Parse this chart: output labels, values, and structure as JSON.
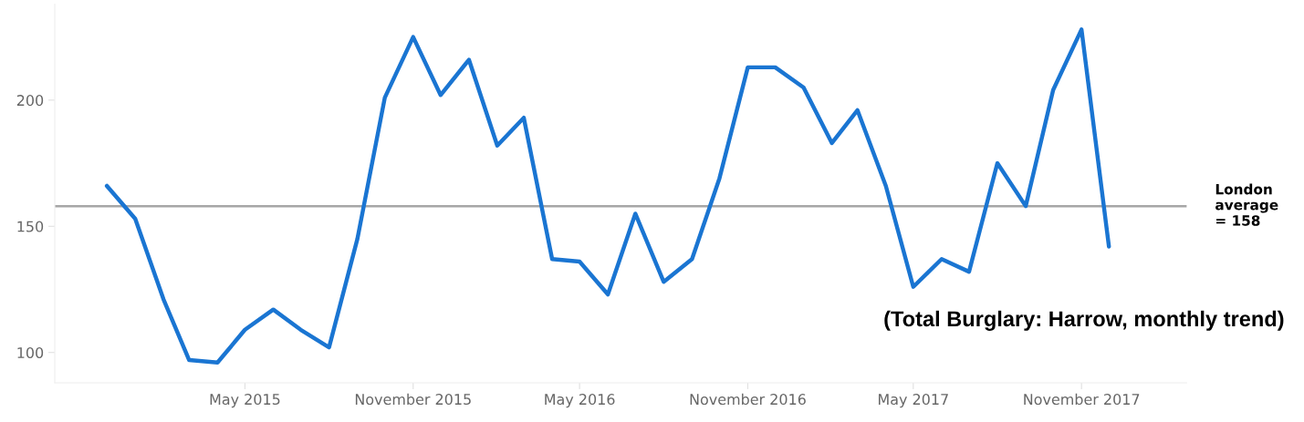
{
  "chart_data": {
    "type": "line",
    "x": [
      "2014-12",
      "2015-01",
      "2015-02",
      "2015-03",
      "2015-04",
      "2015-05",
      "2015-06",
      "2015-07",
      "2015-08",
      "2015-09",
      "2015-10",
      "2015-11",
      "2015-12",
      "2016-01",
      "2016-02",
      "2016-03",
      "2016-04",
      "2016-05",
      "2016-06",
      "2016-07",
      "2016-08",
      "2016-09",
      "2016-10",
      "2016-11",
      "2016-12",
      "2017-01",
      "2017-02",
      "2017-03",
      "2017-04",
      "2017-05",
      "2017-06",
      "2017-07",
      "2017-08",
      "2017-09",
      "2017-10",
      "2017-11",
      "2017-12"
    ],
    "series": [
      {
        "color": "#1a75d2",
        "values": [
          166,
          153,
          121,
          97,
          96,
          109,
          117,
          109,
          102,
          145,
          201,
          225,
          202,
          216,
          182,
          193,
          137,
          136,
          123,
          155,
          128,
          137,
          169,
          213,
          213,
          205,
          183,
          196,
          166,
          126,
          137,
          132,
          175,
          158,
          204,
          228,
          142
        ]
      }
    ],
    "xlim": [
      "2014-10-05",
      "2018-02-24"
    ],
    "xticks": [
      {
        "value": "2015-05",
        "label": "May 2015"
      },
      {
        "value": "2015-11",
        "label": "November 2015"
      },
      {
        "value": "2016-05",
        "label": "May 2016"
      },
      {
        "value": "2016-11",
        "label": "November 2016"
      },
      {
        "value": "2017-05",
        "label": "May 2017"
      },
      {
        "value": "2017-11",
        "label": "November 2017"
      }
    ],
    "ylim": [
      88,
      238
    ],
    "yticks": [
      100,
      150,
      200
    ],
    "grid": false,
    "marker": "none",
    "line_style": "solid",
    "ref_lines": [
      {
        "axis": "y",
        "value": 158,
        "label": "London\naverage\n= 158",
        "color": "#a6a6a6",
        "line_style": "solid"
      }
    ],
    "annotations": [
      "(Total Burglary: Harrow, monthly trend)"
    ]
  }
}
